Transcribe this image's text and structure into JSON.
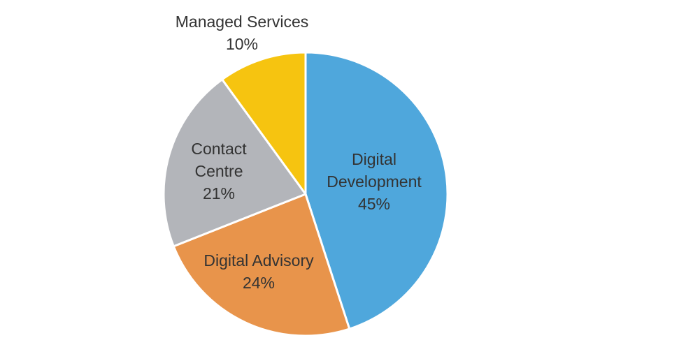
{
  "chart_data": {
    "type": "pie",
    "start_angle": "12 o'clock",
    "direction": "clockwise",
    "slices": [
      {
        "label_lines": [
          "Digital",
          "Development"
        ],
        "value": 45,
        "value_label": "45%",
        "color": "#4FA7DC"
      },
      {
        "label_lines": [
          "Digital Advisory"
        ],
        "value": 24,
        "value_label": "24%",
        "color": "#E8944B"
      },
      {
        "label_lines": [
          "Contact",
          "Centre"
        ],
        "value": 21,
        "value_label": "21%",
        "color": "#B3B5BA"
      },
      {
        "label_lines": [
          "Managed Services"
        ],
        "value": 10,
        "value_label": "10%",
        "color": "#F6C410"
      }
    ],
    "legend": "none"
  }
}
